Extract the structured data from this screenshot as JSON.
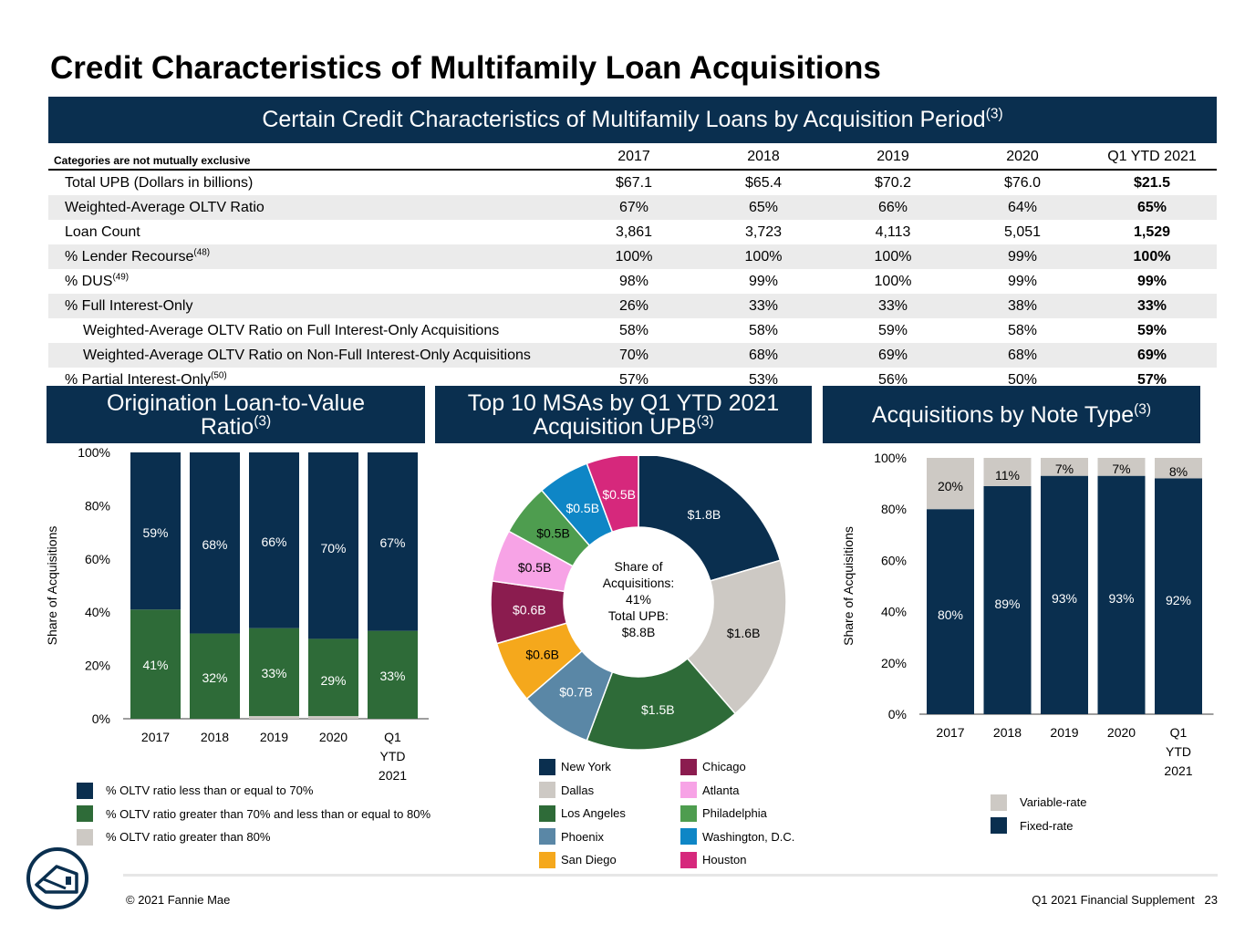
{
  "title": "Credit Characteristics of Multifamily Loan Acquisitions",
  "table_banner": {
    "text": "Certain Credit Characteristics of Multifamily Loans by Acquisition Period",
    "sup": "(3)"
  },
  "table": {
    "category_note": "Categories are not mutually exclusive",
    "columns": [
      "2017",
      "2018",
      "2019",
      "2020",
      "Q1 YTD 2021"
    ],
    "rows": [
      {
        "label": "Total UPB (Dollars in billions)",
        "sup": "",
        "values": [
          "$67.1",
          "$65.4",
          "$70.2",
          "$76.0",
          "$21.5"
        ]
      },
      {
        "label": "Weighted-Average OLTV Ratio",
        "sup": "",
        "values": [
          "67%",
          "65%",
          "66%",
          "64%",
          "65%"
        ]
      },
      {
        "label": "Loan Count",
        "sup": "",
        "values": [
          "3,861",
          "3,723",
          "4,113",
          "5,051",
          "1,529"
        ]
      },
      {
        "label": "% Lender Recourse",
        "sup": "(48)",
        "values": [
          "100%",
          "100%",
          "100%",
          "99%",
          "100%"
        ]
      },
      {
        "label": "% DUS",
        "sup": "(49)",
        "values": [
          "98%",
          "99%",
          "100%",
          "99%",
          "99%"
        ]
      },
      {
        "label": "% Full Interest-Only",
        "sup": "",
        "values": [
          "26%",
          "33%",
          "33%",
          "38%",
          "33%"
        ]
      },
      {
        "label": "Weighted-Average OLTV Ratio on Full Interest-Only Acquisitions",
        "sup": "",
        "values": [
          "58%",
          "58%",
          "59%",
          "58%",
          "59%"
        ]
      },
      {
        "label": "Weighted-Average OLTV Ratio on Non-Full Interest-Only Acquisitions",
        "sup": "",
        "values": [
          "70%",
          "68%",
          "69%",
          "68%",
          "69%"
        ]
      },
      {
        "label": "% Partial Interest-Only",
        "sup": "(50)",
        "values": [
          "57%",
          "53%",
          "56%",
          "50%",
          "57%"
        ]
      }
    ]
  },
  "ltv_panel": {
    "title_line1": "Origination Loan-to-Value",
    "title_line2": "Ratio",
    "sup": "(3)",
    "legend": [
      {
        "label": "% OLTV ratio less than or equal to 70%",
        "color": "#0a2f4f"
      },
      {
        "label": "% OLTV ratio greater than 70% and less than or equal to 80%",
        "color": "#2e6b38"
      },
      {
        "label": "% OLTV ratio greater than 80%",
        "color": "#cdc9c4"
      }
    ]
  },
  "msa_panel": {
    "title_line1": "Top 10 MSAs by Q1 YTD 2021",
    "title_line2": "Acquisition UPB",
    "sup": "(3)",
    "center_lines": [
      "Share of",
      "Acquisitions:",
      "41%",
      "Total UPB:",
      "$8.8B"
    ]
  },
  "note_panel": {
    "title": "Acquisitions by Note Type",
    "sup": "(3)",
    "legend": [
      {
        "label": "Variable-rate",
        "color": "#cdc9c4"
      },
      {
        "label": "Fixed-rate",
        "color": "#0a2f4f"
      }
    ]
  },
  "chart_data": [
    {
      "type": "bar",
      "stacked": true,
      "categories": [
        "2017",
        "2018",
        "2019",
        "2020",
        "Q1 YTD 2021"
      ],
      "ylabel": "Share of Acquisitions",
      "ylim": [
        0,
        100
      ],
      "yticks": [
        "0%",
        "20%",
        "40%",
        "60%",
        "80%",
        "100%"
      ],
      "series": [
        {
          "name": "% OLTV ratio greater than 80%",
          "color": "#cdc9c4",
          "values": [
            0,
            0,
            1,
            1,
            0
          ],
          "labels": [
            "",
            "",
            "",
            "",
            ""
          ]
        },
        {
          "name": "% OLTV ratio greater than 70% and less than or equal to 80%",
          "color": "#2e6b38",
          "values": [
            41,
            32,
            33,
            29,
            33
          ],
          "labels": [
            "41%",
            "32%",
            "33%",
            "29%",
            "33%"
          ]
        },
        {
          "name": "% OLTV ratio less than or equal to 70%",
          "color": "#0a2f4f",
          "values": [
            59,
            68,
            66,
            70,
            67
          ],
          "labels": [
            "59%",
            "68%",
            "66%",
            "70%",
            "67%"
          ]
        }
      ]
    },
    {
      "type": "pie",
      "donut": true,
      "slices": [
        {
          "name": "New York",
          "value": 1.8,
          "label": "$1.8B",
          "color": "#0a2f4f"
        },
        {
          "name": "Dallas",
          "value": 1.6,
          "label": "$1.6B",
          "color": "#cdc9c4"
        },
        {
          "name": "Los Angeles",
          "value": 1.5,
          "label": "$1.5B",
          "color": "#2e6b38"
        },
        {
          "name": "Phoenix",
          "value": 0.7,
          "label": "$0.7B",
          "color": "#5a87a6"
        },
        {
          "name": "San Diego",
          "value": 0.6,
          "label": "$0.6B",
          "color": "#f5a81c"
        },
        {
          "name": "Chicago",
          "value": 0.6,
          "label": "$0.6B",
          "color": "#8b1c4f"
        },
        {
          "name": "Atlanta",
          "value": 0.5,
          "label": "$0.5B",
          "color": "#f7a3e6"
        },
        {
          "name": "Philadelphia",
          "value": 0.5,
          "label": "$0.5B",
          "color": "#4e9d4f"
        },
        {
          "name": "Washington, D.C.",
          "value": 0.5,
          "label": "$0.5B",
          "color": "#0e86c6"
        },
        {
          "name": "Houston",
          "value": 0.5,
          "label": "$0.5B",
          "color": "#d6287c"
        }
      ]
    },
    {
      "type": "bar",
      "stacked": true,
      "categories": [
        "2017",
        "2018",
        "2019",
        "2020",
        "Q1 YTD 2021"
      ],
      "ylabel": "Share of Acquisitions",
      "ylim": [
        0,
        100
      ],
      "yticks": [
        "0%",
        "20%",
        "40%",
        "60%",
        "80%",
        "100%"
      ],
      "series": [
        {
          "name": "Fixed-rate",
          "color": "#0a2f4f",
          "values": [
            80,
            89,
            93,
            93,
            92
          ],
          "labels": [
            "80%",
            "89%",
            "93%",
            "93%",
            "92%"
          ]
        },
        {
          "name": "Variable-rate",
          "color": "#cdc9c4",
          "values": [
            20,
            11,
            7,
            7,
            8
          ],
          "labels": [
            "20%",
            "11%",
            "7%",
            "7%",
            "8%"
          ]
        }
      ]
    }
  ],
  "footer": {
    "copyright": "© 2021 Fannie Mae",
    "right": "Q1 2021 Financial Supplement   23"
  }
}
